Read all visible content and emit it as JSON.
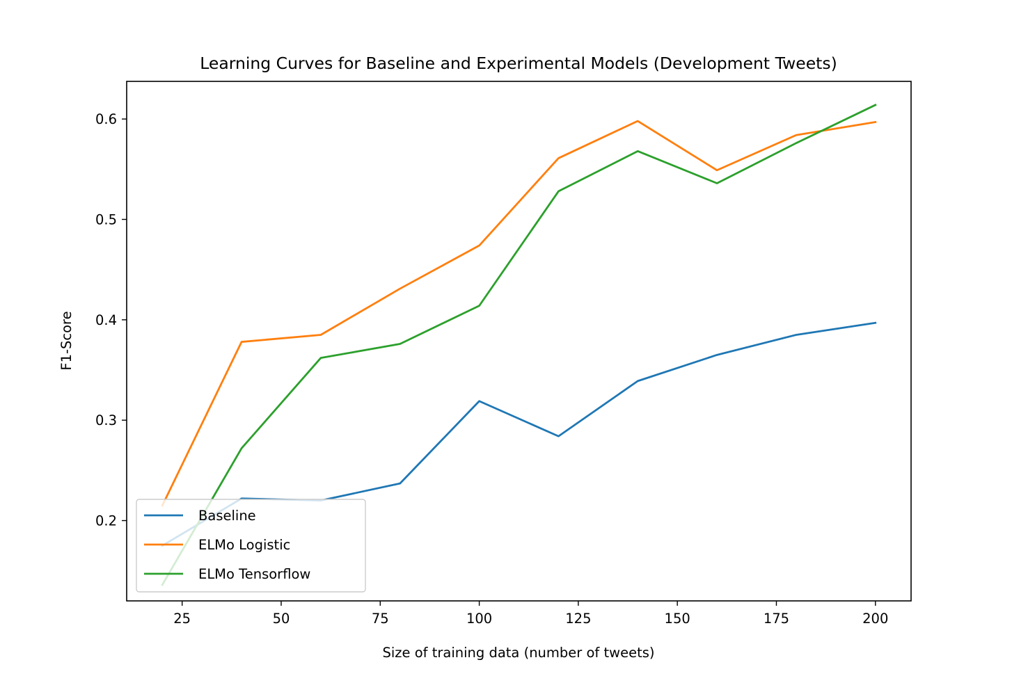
{
  "chart_data": {
    "type": "line",
    "title": "Learning Curves for Baseline and Experimental Models (Development Tweets)",
    "xlabel": "Size of training data (number of tweets)",
    "ylabel": "F1-Score",
    "x": [
      20,
      40,
      60,
      80,
      100,
      120,
      140,
      160,
      180,
      200
    ],
    "xlim": [
      11,
      209
    ],
    "ylim": [
      0.12,
      0.6375
    ],
    "xticks": [
      25,
      50,
      75,
      100,
      125,
      150,
      175,
      200
    ],
    "yticks": [
      0.2,
      0.3,
      0.4,
      0.5,
      0.6
    ],
    "xtick_labels": [
      "25",
      "50",
      "75",
      "100",
      "125",
      "150",
      "175",
      "200"
    ],
    "ytick_labels": [
      "0.2",
      "0.3",
      "0.4",
      "0.5",
      "0.6"
    ],
    "grid": false,
    "legend_position": "lower-left",
    "series": [
      {
        "name": "Baseline",
        "color": "#1f77b4",
        "values": [
          0.175,
          0.222,
          0.22,
          0.237,
          0.319,
          0.284,
          0.339,
          0.365,
          0.385,
          0.397
        ]
      },
      {
        "name": "ELMo Logistic",
        "color": "#ff7f0e",
        "values": [
          0.215,
          0.378,
          0.385,
          0.431,
          0.474,
          0.561,
          0.598,
          0.549,
          0.584,
          0.597
        ]
      },
      {
        "name": "ELMo Tensorflow",
        "color": "#2ca02c",
        "values": [
          0.136,
          0.272,
          0.362,
          0.376,
          0.414,
          0.528,
          0.568,
          0.536,
          0.576,
          0.614
        ]
      }
    ]
  }
}
